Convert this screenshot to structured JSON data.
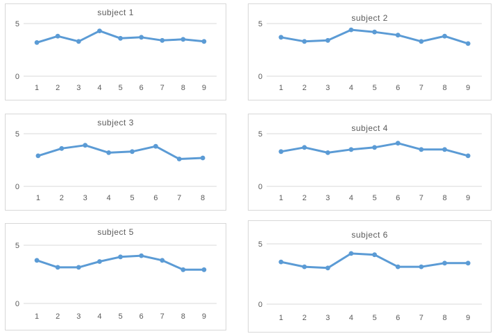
{
  "accent_color": "#5b9bd5",
  "grid_color": "#d9d9d9",
  "text_color": "#595959",
  "chart_data": [
    {
      "type": "line",
      "title": "subject 1",
      "categories": [
        "1",
        "2",
        "3",
        "4",
        "5",
        "6",
        "7",
        "8",
        "9"
      ],
      "values": [
        3.2,
        3.8,
        3.3,
        4.3,
        3.6,
        3.7,
        3.4,
        3.5,
        3.3
      ],
      "xlabel": "",
      "ylabel": "",
      "ylim": [
        0,
        5
      ],
      "yticks": [
        5,
        0
      ],
      "grid": true,
      "legend": "none"
    },
    {
      "type": "line",
      "title": "subject 2",
      "categories": [
        "1",
        "2",
        "3",
        "4",
        "5",
        "6",
        "7",
        "8",
        "9"
      ],
      "values": [
        3.7,
        3.3,
        3.4,
        4.4,
        4.2,
        3.9,
        3.3,
        3.8,
        3.1
      ],
      "xlabel": "",
      "ylabel": "",
      "ylim": [
        0,
        5
      ],
      "yticks": [
        5,
        0
      ],
      "grid": true,
      "legend": "none"
    },
    {
      "type": "line",
      "title": "subject 3",
      "categories": [
        "1",
        "2",
        "3",
        "4",
        "5",
        "6",
        "7",
        "8"
      ],
      "values": [
        2.9,
        3.6,
        3.9,
        3.2,
        3.3,
        3.8,
        2.6,
        2.7
      ],
      "xlabel": "",
      "ylabel": "",
      "ylim": [
        0,
        5
      ],
      "yticks": [
        5,
        0
      ],
      "grid": true,
      "legend": "none"
    },
    {
      "type": "line",
      "title": "subject 4",
      "categories": [
        "1",
        "2",
        "3",
        "4",
        "5",
        "6",
        "7",
        "8",
        "9"
      ],
      "values": [
        3.3,
        3.7,
        3.2,
        3.5,
        3.7,
        4.1,
        3.5,
        3.5,
        2.9
      ],
      "xlabel": "",
      "ylabel": "",
      "ylim": [
        0,
        5
      ],
      "yticks": [
        5,
        0
      ],
      "grid": true,
      "legend": "none"
    },
    {
      "type": "line",
      "title": "subject 5",
      "categories": [
        "1",
        "2",
        "3",
        "4",
        "5",
        "6",
        "7",
        "8",
        "9"
      ],
      "values": [
        3.7,
        3.1,
        3.1,
        3.6,
        4.0,
        4.1,
        3.7,
        2.9,
        2.9
      ],
      "xlabel": "",
      "ylabel": "",
      "ylim": [
        0,
        5
      ],
      "yticks": [
        5,
        0
      ],
      "grid": true,
      "legend": "none"
    },
    {
      "type": "line",
      "title": "subject 6",
      "categories": [
        "1",
        "2",
        "3",
        "4",
        "5",
        "6",
        "7",
        "8",
        "9"
      ],
      "values": [
        3.5,
        3.1,
        3.0,
        4.2,
        4.1,
        3.1,
        3.1,
        3.4,
        3.4
      ],
      "xlabel": "",
      "ylabel": "",
      "ylim": [
        0,
        5
      ],
      "yticks": [
        5,
        0
      ],
      "grid": true,
      "legend": "none"
    }
  ]
}
